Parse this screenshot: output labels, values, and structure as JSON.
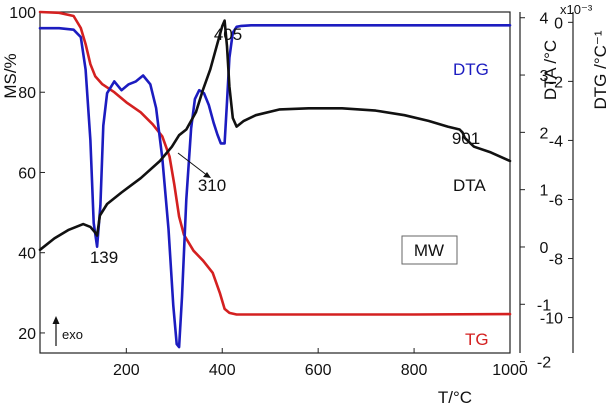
{
  "chart_data": {
    "type": "line",
    "x_range": [
      20,
      1000
    ],
    "xlabel": "T/°C",
    "x_ticks": [
      200,
      400,
      600,
      800,
      1000
    ],
    "axes": {
      "left": {
        "label": "MS/%",
        "range": [
          15,
          100
        ],
        "ticks": [
          20,
          40,
          60,
          80,
          100
        ]
      },
      "right1": {
        "label": "DTA /°C",
        "range": [
          -1.85,
          4.1
        ],
        "ticks": [
          -2,
          -1,
          0,
          1,
          2,
          3,
          4
        ]
      },
      "right2": {
        "label": "DTG /°C⁻¹",
        "exponent": "x10⁻³",
        "range": [
          -11.2,
          0.35
        ],
        "ticks": [
          0,
          -2,
          -4,
          -6,
          -8,
          -10
        ]
      }
    },
    "series": [
      {
        "name": "TG",
        "axis": "left",
        "color": "#d42020",
        "x": [
          20,
          60,
          90,
          105,
          115,
          125,
          135,
          150,
          175,
          200,
          230,
          255,
          275,
          290,
          300,
          310,
          320,
          340,
          360,
          380,
          395,
          405,
          415,
          430,
          450,
          600,
          800,
          1000
        ],
        "y": [
          100,
          99.8,
          99,
          96,
          92,
          87,
          84,
          82,
          80,
          77.5,
          75,
          72,
          69,
          64,
          57,
          49,
          44.5,
          40.5,
          38,
          35,
          30,
          26,
          25,
          24.6,
          24.6,
          24.6,
          24.6,
          24.7
        ]
      },
      {
        "name": "DTG",
        "axis": "right2",
        "color": "#1c1cc0",
        "x": [
          20,
          60,
          90,
          105,
          115,
          125,
          132,
          139,
          146,
          152,
          160,
          175,
          190,
          205,
          220,
          235,
          250,
          262,
          275,
          288,
          298,
          305,
          310,
          316,
          325,
          335,
          343,
          352,
          362,
          372,
          382,
          390,
          397,
          405,
          410,
          415,
          422,
          430,
          440,
          460,
          600,
          800,
          1000
        ],
        "y": [
          -0.2,
          -0.2,
          -0.25,
          -0.5,
          -1.6,
          -4.0,
          -6.8,
          -7.6,
          -6.2,
          -3.5,
          -2.4,
          -2.0,
          -2.3,
          -2.1,
          -2.0,
          -1.8,
          -2.1,
          -2.9,
          -4.6,
          -7.0,
          -9.6,
          -10.9,
          -11.0,
          -9.3,
          -6.0,
          -3.6,
          -2.6,
          -2.3,
          -2.4,
          -2.8,
          -3.4,
          -3.8,
          -4.1,
          -4.1,
          -2.7,
          -1.2,
          -0.35,
          -0.15,
          -0.12,
          -0.1,
          -0.1,
          -0.1,
          -0.1
        ]
      },
      {
        "name": "DTA",
        "axis": "right1",
        "color": "#111111",
        "x": [
          20,
          50,
          80,
          110,
          125,
          135,
          139,
          145,
          160,
          190,
          230,
          270,
          295,
          310,
          325,
          345,
          360,
          375,
          390,
          400,
          405,
          410,
          415,
          422,
          430,
          445,
          470,
          520,
          580,
          650,
          720,
          780,
          830,
          870,
          895,
          901,
          906,
          925,
          960,
          1000
        ],
        "y": [
          -0.05,
          0.15,
          0.3,
          0.4,
          0.35,
          0.25,
          0.2,
          0.55,
          0.75,
          0.95,
          1.2,
          1.5,
          1.75,
          1.95,
          2.05,
          2.35,
          2.75,
          3.1,
          3.55,
          3.85,
          3.95,
          3.5,
          2.8,
          2.25,
          2.1,
          2.2,
          2.3,
          2.4,
          2.42,
          2.42,
          2.38,
          2.3,
          2.2,
          2.1,
          2.05,
          2.0,
          1.9,
          1.75,
          1.65,
          1.5
        ]
      }
    ],
    "annotations": [
      {
        "text": "139",
        "x": 139
      },
      {
        "text": "310",
        "x": 310
      },
      {
        "text": "405",
        "x": 405
      },
      {
        "text": "901",
        "x": 901
      }
    ],
    "series_labels": [
      "DTG",
      "DTA",
      "TG"
    ],
    "sample_label": "MW",
    "exo_label": "exo"
  }
}
